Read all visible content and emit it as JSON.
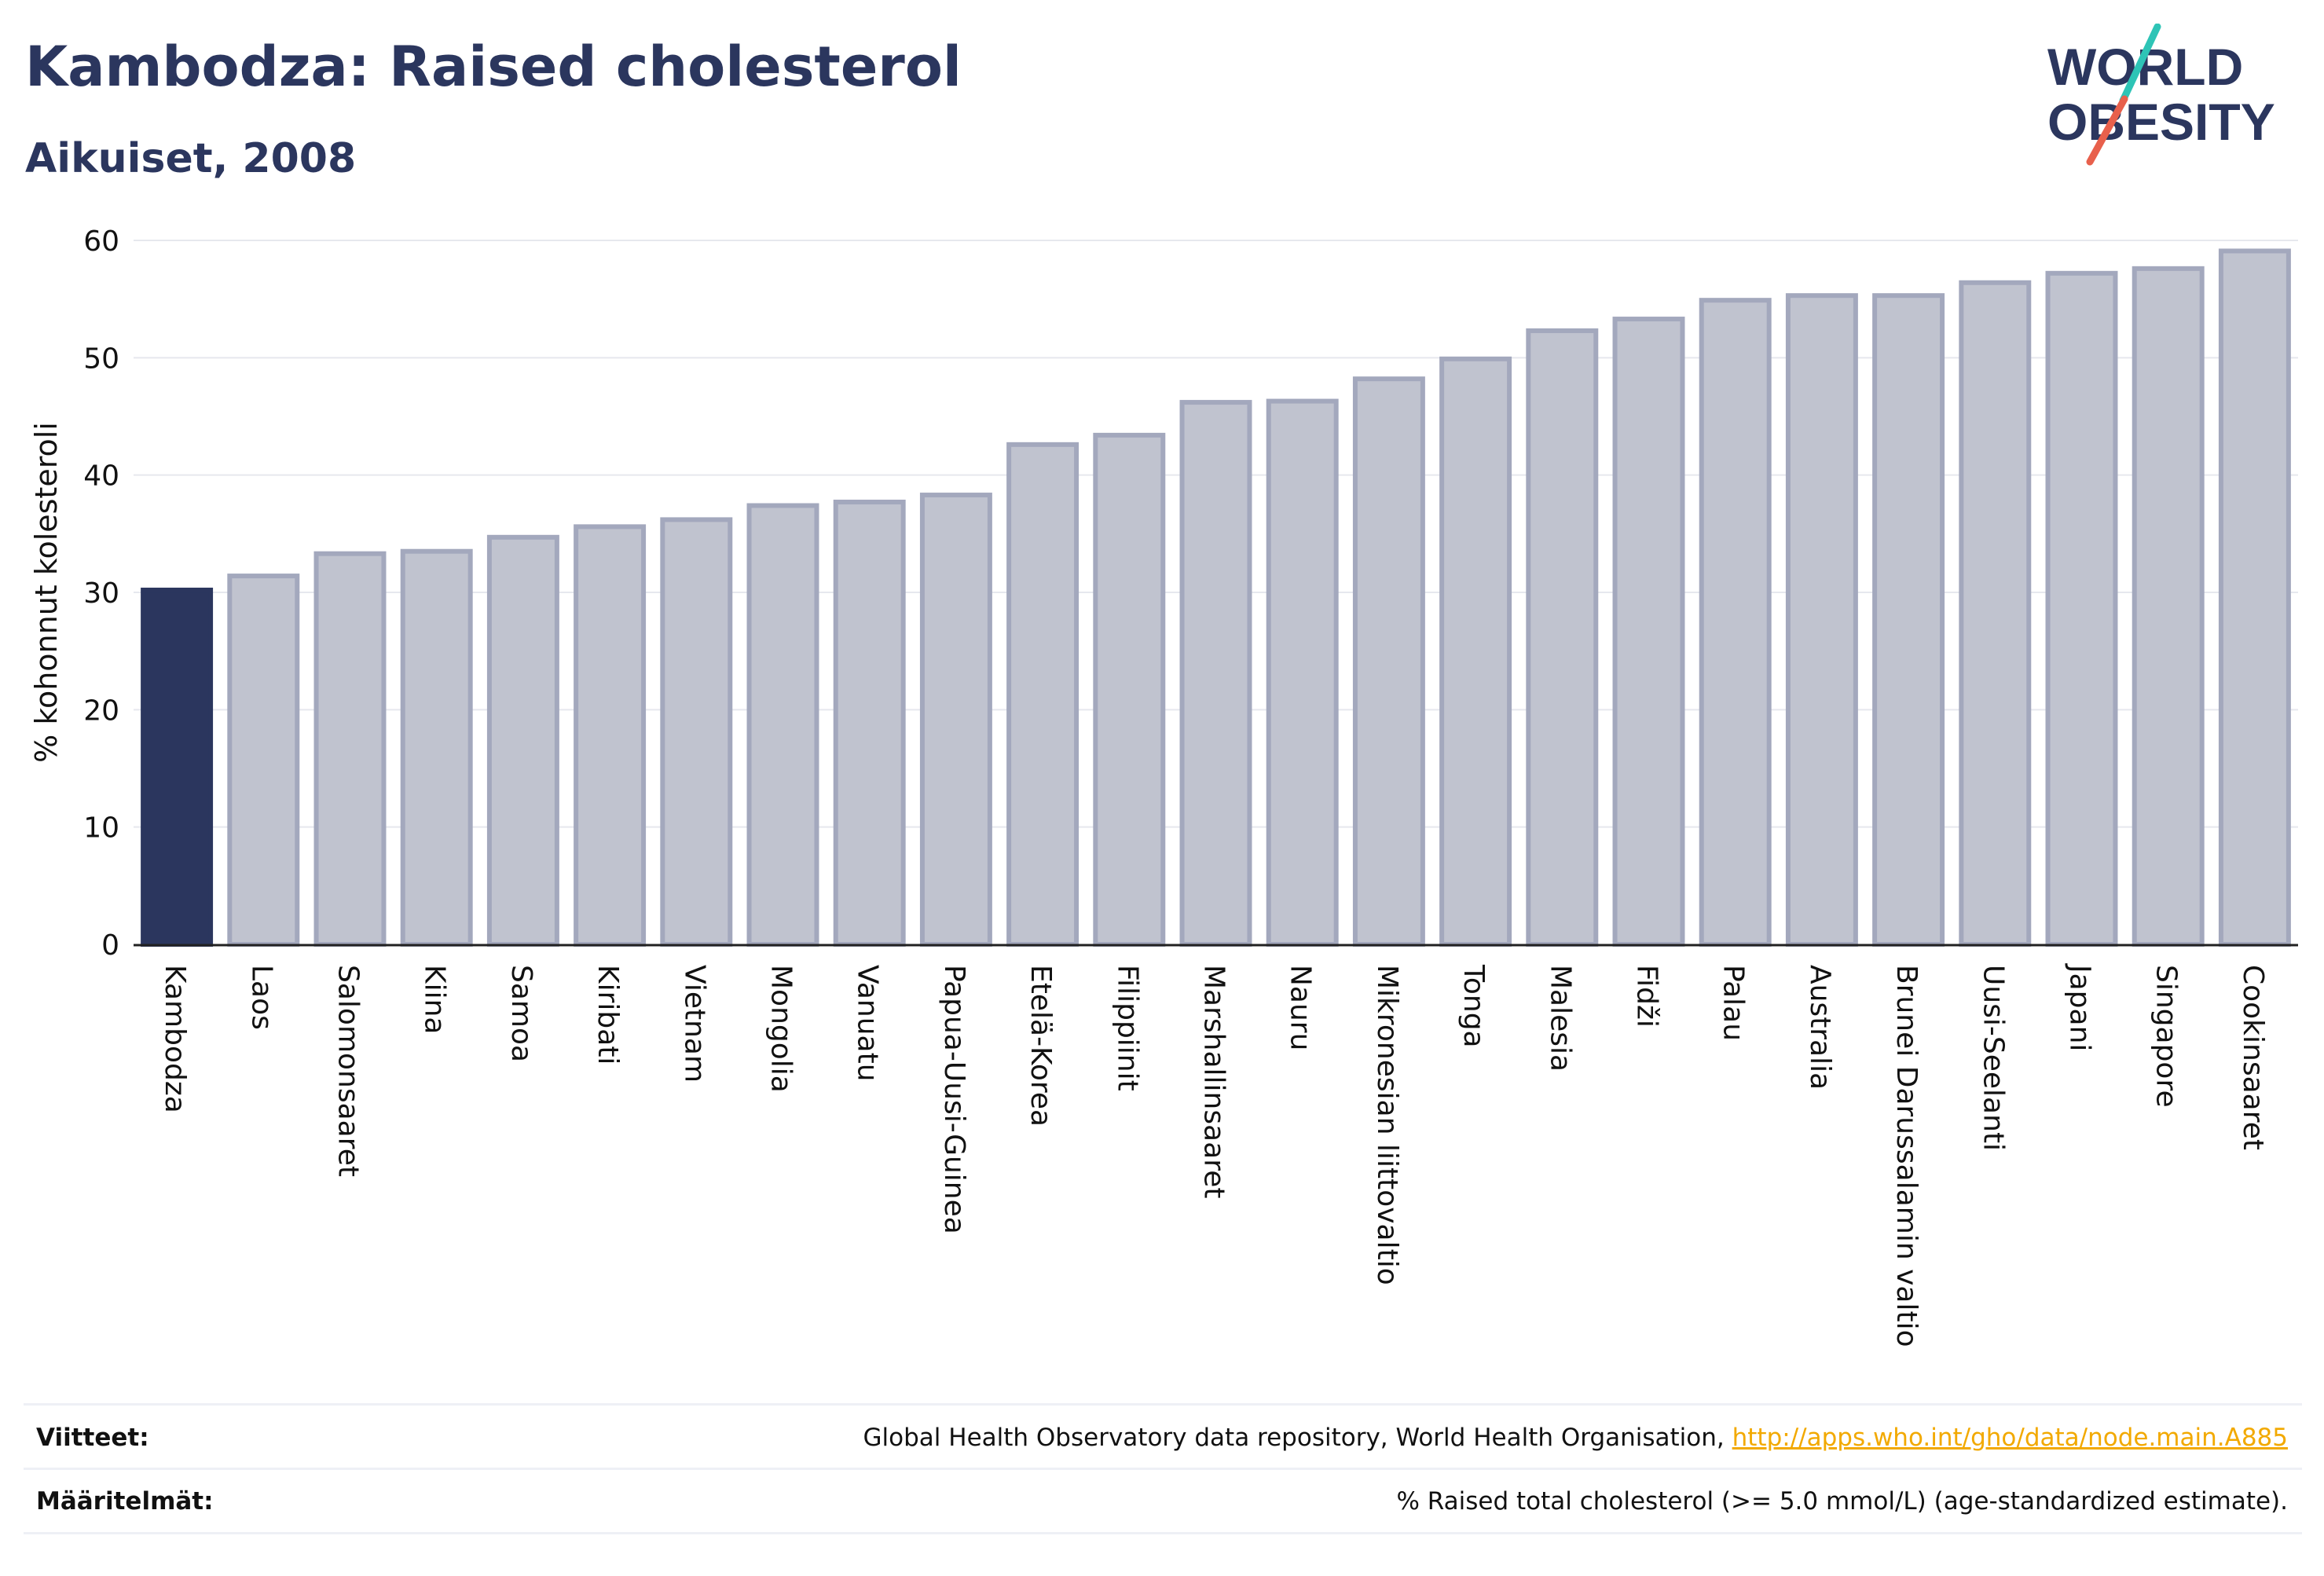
{
  "header": {
    "title": "Kambodza: Raised cholesterol",
    "subtitle": "Aikuiset, 2008"
  },
  "logo": {
    "line1": "WORLD",
    "line2": "OBESITY",
    "colors": {
      "text": "#2b365e",
      "slash_teal": "#2ec4b6",
      "slash_red": "#e8604c"
    }
  },
  "chart_data": {
    "type": "bar",
    "title": "Kambodza: Raised cholesterol",
    "subtitle": "Aikuiset, 2008",
    "ylabel": "% kohonnut kolesteroli",
    "xlabel": "",
    "ylim": [
      0,
      60
    ],
    "yticks": [
      0,
      10,
      20,
      30,
      40,
      50,
      60
    ],
    "grid": true,
    "highlight_category": "Kambodza",
    "colors": {
      "highlight": "#2b365e",
      "bar_fill": "#c0c3cf",
      "bar_stroke": "#a3a8bd",
      "grid": "#e6e8ee"
    },
    "categories": [
      "Kambodza",
      "Laos",
      "Salomonsaaret",
      "Kiina",
      "Samoa",
      "Kiribati",
      "Vietnam",
      "Mongolia",
      "Vanuatu",
      "Papua-Uusi-Guinea",
      "Etelä-Korea",
      "Filippiinit",
      "Marshallinsaaret",
      "Nauru",
      "Mikronesian liittovaltio",
      "Tonga",
      "Malesia",
      "Fidži",
      "Palau",
      "Australia",
      "Brunei Darussalamin valtio",
      "Uusi-Seelanti",
      "Japani",
      "Singapore",
      "Cookinsaaret"
    ],
    "values": [
      30.2,
      31.4,
      33.3,
      33.5,
      34.7,
      35.6,
      36.2,
      37.4,
      37.7,
      38.3,
      42.6,
      43.4,
      46.2,
      46.3,
      48.2,
      49.9,
      52.3,
      53.3,
      54.9,
      55.3,
      55.3,
      56.4,
      57.2,
      57.6,
      59.1
    ]
  },
  "footer": {
    "sources_label": "Viitteet:",
    "sources_text": "Global Health Observatory data repository, World Health Organisation, ",
    "sources_link": "http://apps.who.int/gho/data/node.main.A885",
    "definitions_label": "Määritelmät:",
    "definitions_text": "% Raised total cholesterol (>= 5.0 mmol/L) (age-standardized estimate)."
  }
}
